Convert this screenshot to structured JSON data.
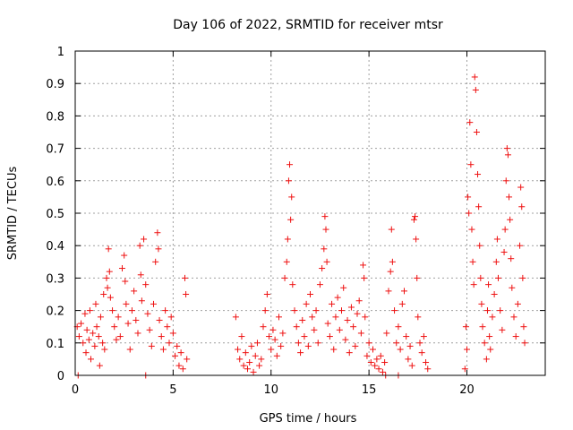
{
  "chart_data": {
    "type": "scatter",
    "title": "Day 106 of 2022, SRMTID for receiver mtsr",
    "xlabel": "GPS time / hours",
    "ylabel": "SRMTID / TECUs",
    "xlim": [
      0,
      24
    ],
    "ylim": [
      0,
      1
    ],
    "xticks": [
      0,
      5,
      10,
      15,
      20
    ],
    "yticks": [
      0,
      0.1,
      0.2,
      0.3,
      0.4,
      0.5,
      0.6,
      0.7,
      0.8,
      0.9,
      1
    ],
    "grid": true,
    "legend": "none",
    "marker": "plus",
    "color": "#ee1111",
    "series": [
      {
        "points": [
          [
            0.1,
            0.15
          ],
          [
            0.2,
            0.12
          ],
          [
            0.3,
            0.16
          ],
          [
            0.4,
            0.1
          ],
          [
            0.5,
            0.19
          ],
          [
            0.55,
            0.07
          ],
          [
            0.6,
            0.14
          ],
          [
            0.7,
            0.11
          ],
          [
            0.75,
            0.2
          ],
          [
            0.8,
            0.05
          ],
          [
            0.9,
            0.13
          ],
          [
            1.0,
            0.09
          ],
          [
            1.05,
            0.22
          ],
          [
            1.1,
            0.15
          ],
          [
            1.2,
            0.12
          ],
          [
            1.25,
            0.03
          ],
          [
            1.3,
            0.18
          ],
          [
            1.4,
            0.1
          ],
          [
            1.45,
            0.25
          ],
          [
            1.5,
            0.08
          ],
          [
            1.6,
            0.3
          ],
          [
            1.65,
            0.27
          ],
          [
            1.7,
            0.39
          ],
          [
            1.75,
            0.32
          ],
          [
            1.8,
            0.24
          ],
          [
            1.9,
            0.2
          ],
          [
            2.0,
            0.15
          ],
          [
            2.1,
            0.11
          ],
          [
            2.2,
            0.18
          ],
          [
            2.3,
            0.12
          ],
          [
            2.4,
            0.33
          ],
          [
            2.5,
            0.37
          ],
          [
            2.55,
            0.29
          ],
          [
            2.6,
            0.22
          ],
          [
            2.7,
            0.16
          ],
          [
            2.8,
            0.08
          ],
          [
            2.9,
            0.2
          ],
          [
            3.0,
            0.26
          ],
          [
            3.1,
            0.17
          ],
          [
            3.2,
            0.13
          ],
          [
            3.3,
            0.4
          ],
          [
            3.35,
            0.31
          ],
          [
            3.4,
            0.23
          ],
          [
            3.5,
            0.42
          ],
          [
            3.6,
            0.28
          ],
          [
            3.7,
            0.19
          ],
          [
            3.8,
            0.14
          ],
          [
            3.9,
            0.09
          ],
          [
            4.0,
            0.22
          ],
          [
            4.1,
            0.35
          ],
          [
            4.2,
            0.44
          ],
          [
            4.25,
            0.39
          ],
          [
            4.3,
            0.17
          ],
          [
            4.4,
            0.12
          ],
          [
            4.5,
            0.08
          ],
          [
            4.6,
            0.2
          ],
          [
            4.7,
            0.15
          ],
          [
            4.8,
            0.1
          ],
          [
            4.9,
            0.18
          ],
          [
            5.0,
            0.13
          ],
          [
            5.1,
            0.06
          ],
          [
            5.2,
            0.09
          ],
          [
            5.3,
            0.03
          ],
          [
            5.4,
            0.07
          ],
          [
            5.5,
            0.02
          ],
          [
            5.6,
            0.3
          ],
          [
            5.65,
            0.25
          ],
          [
            5.7,
            0.05
          ],
          [
            0.15,
            0.0
          ],
          [
            3.6,
            0.0
          ],
          [
            8.2,
            0.18
          ],
          [
            8.3,
            0.08
          ],
          [
            8.4,
            0.05
          ],
          [
            8.5,
            0.12
          ],
          [
            8.6,
            0.03
          ],
          [
            8.7,
            0.07
          ],
          [
            8.8,
            0.02
          ],
          [
            8.9,
            0.04
          ],
          [
            9.0,
            0.09
          ],
          [
            9.1,
            0.01
          ],
          [
            9.2,
            0.06
          ],
          [
            9.3,
            0.1
          ],
          [
            9.4,
            0.03
          ],
          [
            9.5,
            0.05
          ],
          [
            9.6,
            0.15
          ],
          [
            9.7,
            0.2
          ],
          [
            9.8,
            0.25
          ],
          [
            9.9,
            0.12
          ],
          [
            10.0,
            0.08
          ],
          [
            10.1,
            0.14
          ],
          [
            10.2,
            0.11
          ],
          [
            10.3,
            0.06
          ],
          [
            10.4,
            0.18
          ],
          [
            10.5,
            0.09
          ],
          [
            10.6,
            0.13
          ],
          [
            10.7,
            0.3
          ],
          [
            10.8,
            0.35
          ],
          [
            10.85,
            0.42
          ],
          [
            10.9,
            0.6
          ],
          [
            10.95,
            0.65
          ],
          [
            11.0,
            0.48
          ],
          [
            11.05,
            0.55
          ],
          [
            11.1,
            0.28
          ],
          [
            11.2,
            0.2
          ],
          [
            11.3,
            0.15
          ],
          [
            11.4,
            0.1
          ],
          [
            11.5,
            0.07
          ],
          [
            11.6,
            0.17
          ],
          [
            11.7,
            0.12
          ],
          [
            11.8,
            0.22
          ],
          [
            11.9,
            0.09
          ],
          [
            12.0,
            0.25
          ],
          [
            12.1,
            0.18
          ],
          [
            12.2,
            0.14
          ],
          [
            12.3,
            0.2
          ],
          [
            12.4,
            0.1
          ],
          [
            12.5,
            0.28
          ],
          [
            12.6,
            0.33
          ],
          [
            12.7,
            0.39
          ],
          [
            12.75,
            0.49
          ],
          [
            12.8,
            0.45
          ],
          [
            12.85,
            0.35
          ],
          [
            12.9,
            0.16
          ],
          [
            13.0,
            0.12
          ],
          [
            13.1,
            0.22
          ],
          [
            13.2,
            0.08
          ],
          [
            13.3,
            0.18
          ],
          [
            13.4,
            0.24
          ],
          [
            13.5,
            0.14
          ],
          [
            13.6,
            0.2
          ],
          [
            13.7,
            0.27
          ],
          [
            13.8,
            0.11
          ],
          [
            13.9,
            0.17
          ],
          [
            14.0,
            0.07
          ],
          [
            14.1,
            0.21
          ],
          [
            14.2,
            0.15
          ],
          [
            14.3,
            0.09
          ],
          [
            14.4,
            0.19
          ],
          [
            14.5,
            0.23
          ],
          [
            14.6,
            0.13
          ],
          [
            14.7,
            0.34
          ],
          [
            14.75,
            0.3
          ],
          [
            14.8,
            0.18
          ],
          [
            14.9,
            0.06
          ],
          [
            15.0,
            0.1
          ],
          [
            15.1,
            0.04
          ],
          [
            15.2,
            0.08
          ],
          [
            15.3,
            0.03
          ],
          [
            15.4,
            0.05
          ],
          [
            15.5,
            0.02
          ],
          [
            15.6,
            0.06
          ],
          [
            15.7,
            0.01
          ],
          [
            15.8,
            0.04
          ],
          [
            15.9,
            0.13
          ],
          [
            16.0,
            0.26
          ],
          [
            16.1,
            0.32
          ],
          [
            16.15,
            0.45
          ],
          [
            16.2,
            0.35
          ],
          [
            16.3,
            0.2
          ],
          [
            16.4,
            0.1
          ],
          [
            16.5,
            0.15
          ],
          [
            16.6,
            0.08
          ],
          [
            16.7,
            0.22
          ],
          [
            16.8,
            0.26
          ],
          [
            16.9,
            0.12
          ],
          [
            17.0,
            0.05
          ],
          [
            17.1,
            0.09
          ],
          [
            17.2,
            0.03
          ],
          [
            17.3,
            0.48
          ],
          [
            17.35,
            0.49
          ],
          [
            17.4,
            0.42
          ],
          [
            17.45,
            0.3
          ],
          [
            17.5,
            0.18
          ],
          [
            17.6,
            0.1
          ],
          [
            17.7,
            0.07
          ],
          [
            17.8,
            0.12
          ],
          [
            17.9,
            0.04
          ],
          [
            18.0,
            0.02
          ],
          [
            15.85,
            0.0
          ],
          [
            16.5,
            0.0
          ],
          [
            19.9,
            0.02
          ],
          [
            19.95,
            0.15
          ],
          [
            20.0,
            0.08
          ],
          [
            20.05,
            0.55
          ],
          [
            20.1,
            0.5
          ],
          [
            20.15,
            0.78
          ],
          [
            20.2,
            0.65
          ],
          [
            20.25,
            0.45
          ],
          [
            20.3,
            0.35
          ],
          [
            20.35,
            0.28
          ],
          [
            20.4,
            0.92
          ],
          [
            20.45,
            0.88
          ],
          [
            20.5,
            0.75
          ],
          [
            20.55,
            0.62
          ],
          [
            20.6,
            0.52
          ],
          [
            20.65,
            0.4
          ],
          [
            20.7,
            0.3
          ],
          [
            20.75,
            0.22
          ],
          [
            20.8,
            0.15
          ],
          [
            20.9,
            0.1
          ],
          [
            21.0,
            0.05
          ],
          [
            21.05,
            0.2
          ],
          [
            21.1,
            0.28
          ],
          [
            21.15,
            0.12
          ],
          [
            21.2,
            0.08
          ],
          [
            21.3,
            0.18
          ],
          [
            21.4,
            0.25
          ],
          [
            21.5,
            0.35
          ],
          [
            21.55,
            0.42
          ],
          [
            21.6,
            0.3
          ],
          [
            21.7,
            0.2
          ],
          [
            21.8,
            0.14
          ],
          [
            21.9,
            0.38
          ],
          [
            21.95,
            0.45
          ],
          [
            22.0,
            0.6
          ],
          [
            22.05,
            0.7
          ],
          [
            22.1,
            0.68
          ],
          [
            22.15,
            0.55
          ],
          [
            22.2,
            0.48
          ],
          [
            22.25,
            0.36
          ],
          [
            22.3,
            0.27
          ],
          [
            22.4,
            0.18
          ],
          [
            22.5,
            0.12
          ],
          [
            22.6,
            0.22
          ],
          [
            22.7,
            0.4
          ],
          [
            22.75,
            0.58
          ],
          [
            22.8,
            0.52
          ],
          [
            22.85,
            0.3
          ],
          [
            22.9,
            0.15
          ],
          [
            22.95,
            0.1
          ]
        ]
      }
    ]
  }
}
